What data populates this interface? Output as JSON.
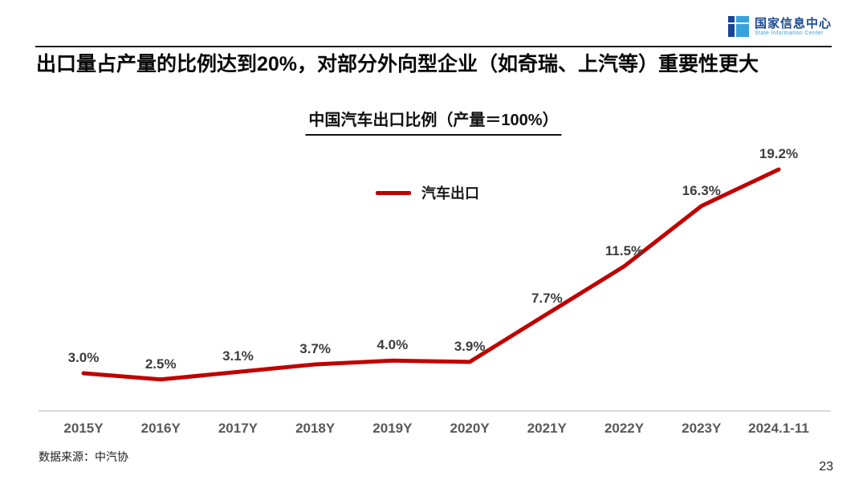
{
  "page": {
    "slide_title": "出口量占产量的比例达到20%，对部分外向型企业（如奇瑞、上汽等）重要性更大",
    "source_note": "数据来源：中汽协",
    "page_number": "23"
  },
  "logo": {
    "name_cn": "国家信息中心",
    "name_en": "State Information Center",
    "color_dark": "#1a4496",
    "color_light": "#38a2dc"
  },
  "chart_data": {
    "type": "line",
    "title": "中国汽车出口比例（产量＝100%）",
    "categories": [
      "2015Y",
      "2016Y",
      "2017Y",
      "2018Y",
      "2019Y",
      "2020Y",
      "2021Y",
      "2022Y",
      "2023Y",
      "2024.1-11"
    ],
    "series": [
      {
        "name": "汽车出口",
        "values": [
          3.0,
          2.5,
          3.1,
          3.7,
          4.0,
          3.9,
          7.7,
          11.5,
          16.3,
          19.2
        ],
        "labels": [
          "3.0%",
          "2.5%",
          "3.1%",
          "3.7%",
          "4.0%",
          "3.9%",
          "7.7%",
          "11.5%",
          "16.3%",
          "19.2%"
        ]
      }
    ],
    "xlabel": "",
    "ylabel": "",
    "ylim": [
      0,
      21
    ],
    "grid": false,
    "legend_position": "top-center",
    "line_color": "#c00000",
    "label_color": "#3d3d3d",
    "axis_label_color": "#595959",
    "axis_line_color": "#dadada"
  }
}
